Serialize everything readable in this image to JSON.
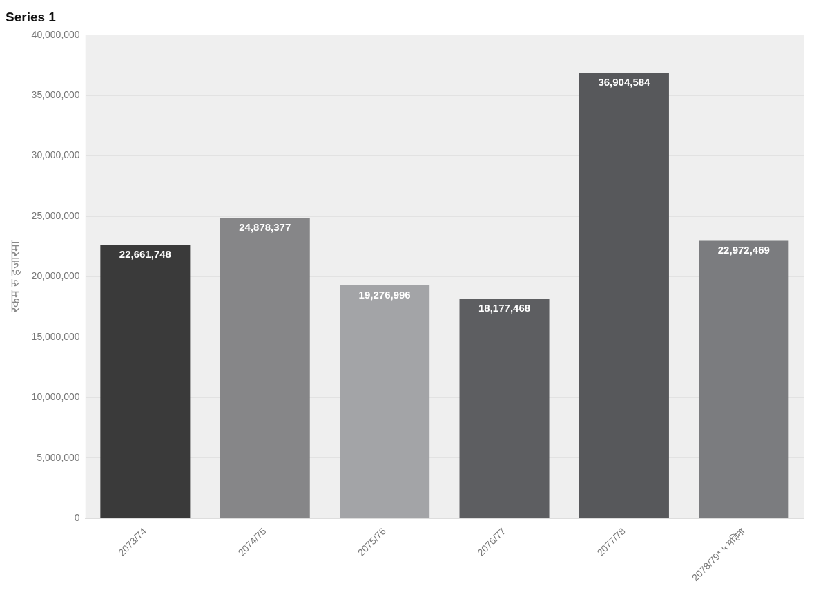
{
  "chart_data": {
    "type": "bar",
    "title": "Series 1",
    "ylabel": "रकम रु हजारमा",
    "categories": [
      "2073/74",
      "2074/75",
      "2075/76",
      "2076/77",
      "2077/78",
      "2078/79* ५ महिना"
    ],
    "values": [
      22661748,
      24878377,
      19276996,
      18177468,
      36904584,
      22972469
    ],
    "value_labels": [
      "22,661,748",
      "24,878,377",
      "19,276,996",
      "18,177,468",
      "36,904,584",
      "22,972,469"
    ],
    "colors": [
      "#3a3a3a",
      "#868688",
      "#a3a4a7",
      "#5d5e61",
      "#57585b",
      "#7b7c7f"
    ],
    "ylim": [
      0,
      40000000
    ],
    "yticks": [
      0,
      {
        "value": 5000000,
        "label": "5,000,000"
      },
      {
        "value": 10000000,
        "label": "10,000,000"
      },
      {
        "value": 15000000,
        "label": "15,000,000"
      },
      {
        "value": 20000000,
        "label": "20,000,000"
      },
      {
        "value": 25000000,
        "label": "25,000,000"
      },
      {
        "value": 30000000,
        "label": "30,000,000"
      },
      {
        "value": 35000000,
        "label": "35,000,000"
      },
      {
        "value": 40000000,
        "label": "40,000,000"
      }
    ],
    "grid": "y",
    "legend": false
  }
}
